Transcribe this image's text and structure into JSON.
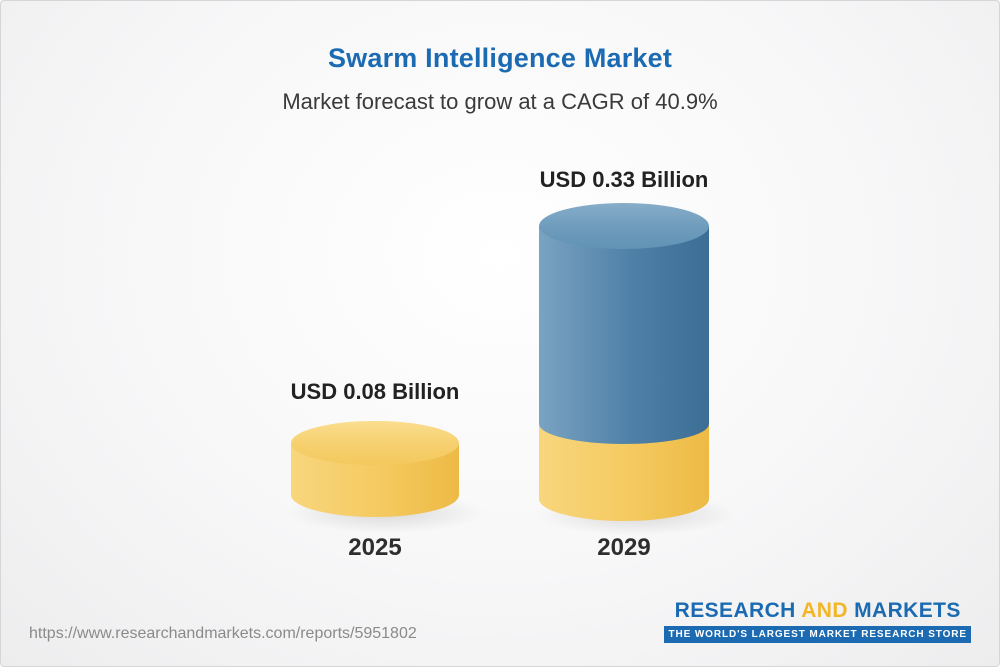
{
  "page": {
    "title": "Swarm Intelligence Market",
    "subtitle": "Market forecast to grow at a CAGR of 40.9%"
  },
  "chart_data": {
    "type": "bar",
    "title": "Swarm Intelligence Market",
    "subtitle": "Market forecast to grow at a CAGR of 40.9%",
    "cagr_percent": 40.9,
    "unit": "USD Billion",
    "categories": [
      "2025",
      "2029"
    ],
    "values": [
      0.08,
      0.33
    ],
    "value_labels": [
      "USD 0.08 Billion",
      "USD 0.33 Billion"
    ],
    "ylim": [
      0,
      0.35
    ],
    "grid": false,
    "legend_position": "none",
    "colors": {
      "bar_2025": "#F5CB62",
      "bar_2029_top_segment": "#4E80A7",
      "bar_2029_base_segment": "#F5CB62",
      "title_text": "#1C6BB2",
      "label_text": "#222222"
    }
  },
  "footer": {
    "url": "https://www.researchandmarkets.com/reports/5951802",
    "logo": {
      "word_research": "RESEARCH",
      "word_and": "AND",
      "word_markets": "MARKETS",
      "tagline": "THE WORLD'S LARGEST MARKET RESEARCH STORE"
    }
  }
}
